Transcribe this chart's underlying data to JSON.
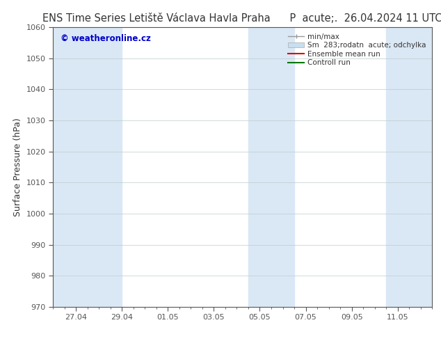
{
  "title_left": "ENS Time Series Letiště Václava Havla Praha",
  "title_right": "P  acute;.  26.04.2024 11 UTC",
  "ylabel": "Surface Pressure (hPa)",
  "ylim": [
    970,
    1060
  ],
  "yticks": [
    970,
    980,
    990,
    1000,
    1010,
    1020,
    1030,
    1040,
    1050,
    1060
  ],
  "x_tick_labels": [
    "27.04",
    "29.04",
    "01.05",
    "03.05",
    "05.05",
    "07.05",
    "09.05",
    "11.05"
  ],
  "x_tick_positions": [
    1,
    3,
    5,
    7,
    9,
    11,
    13,
    15
  ],
  "x_lim": [
    0,
    16.5
  ],
  "watermark": "© weatheronline.cz",
  "watermark_color": "#0000cc",
  "background_color": "#ffffff",
  "plot_bg_color": "#ffffff",
  "shaded_regions": [
    {
      "x_start": 0,
      "x_end": 2.0,
      "color": "#dae8f5"
    },
    {
      "x_start": 2.0,
      "x_end": 3.0,
      "color": "#dae8f5"
    },
    {
      "x_start": 8.5,
      "x_end": 10.5,
      "color": "#dae8f5"
    },
    {
      "x_start": 14.5,
      "x_end": 16.5,
      "color": "#dae8f5"
    }
  ],
  "tick_color": "#444444",
  "grid_color": "#bbcccc",
  "title_fontsize": 10.5,
  "label_fontsize": 9,
  "tick_fontsize": 8
}
